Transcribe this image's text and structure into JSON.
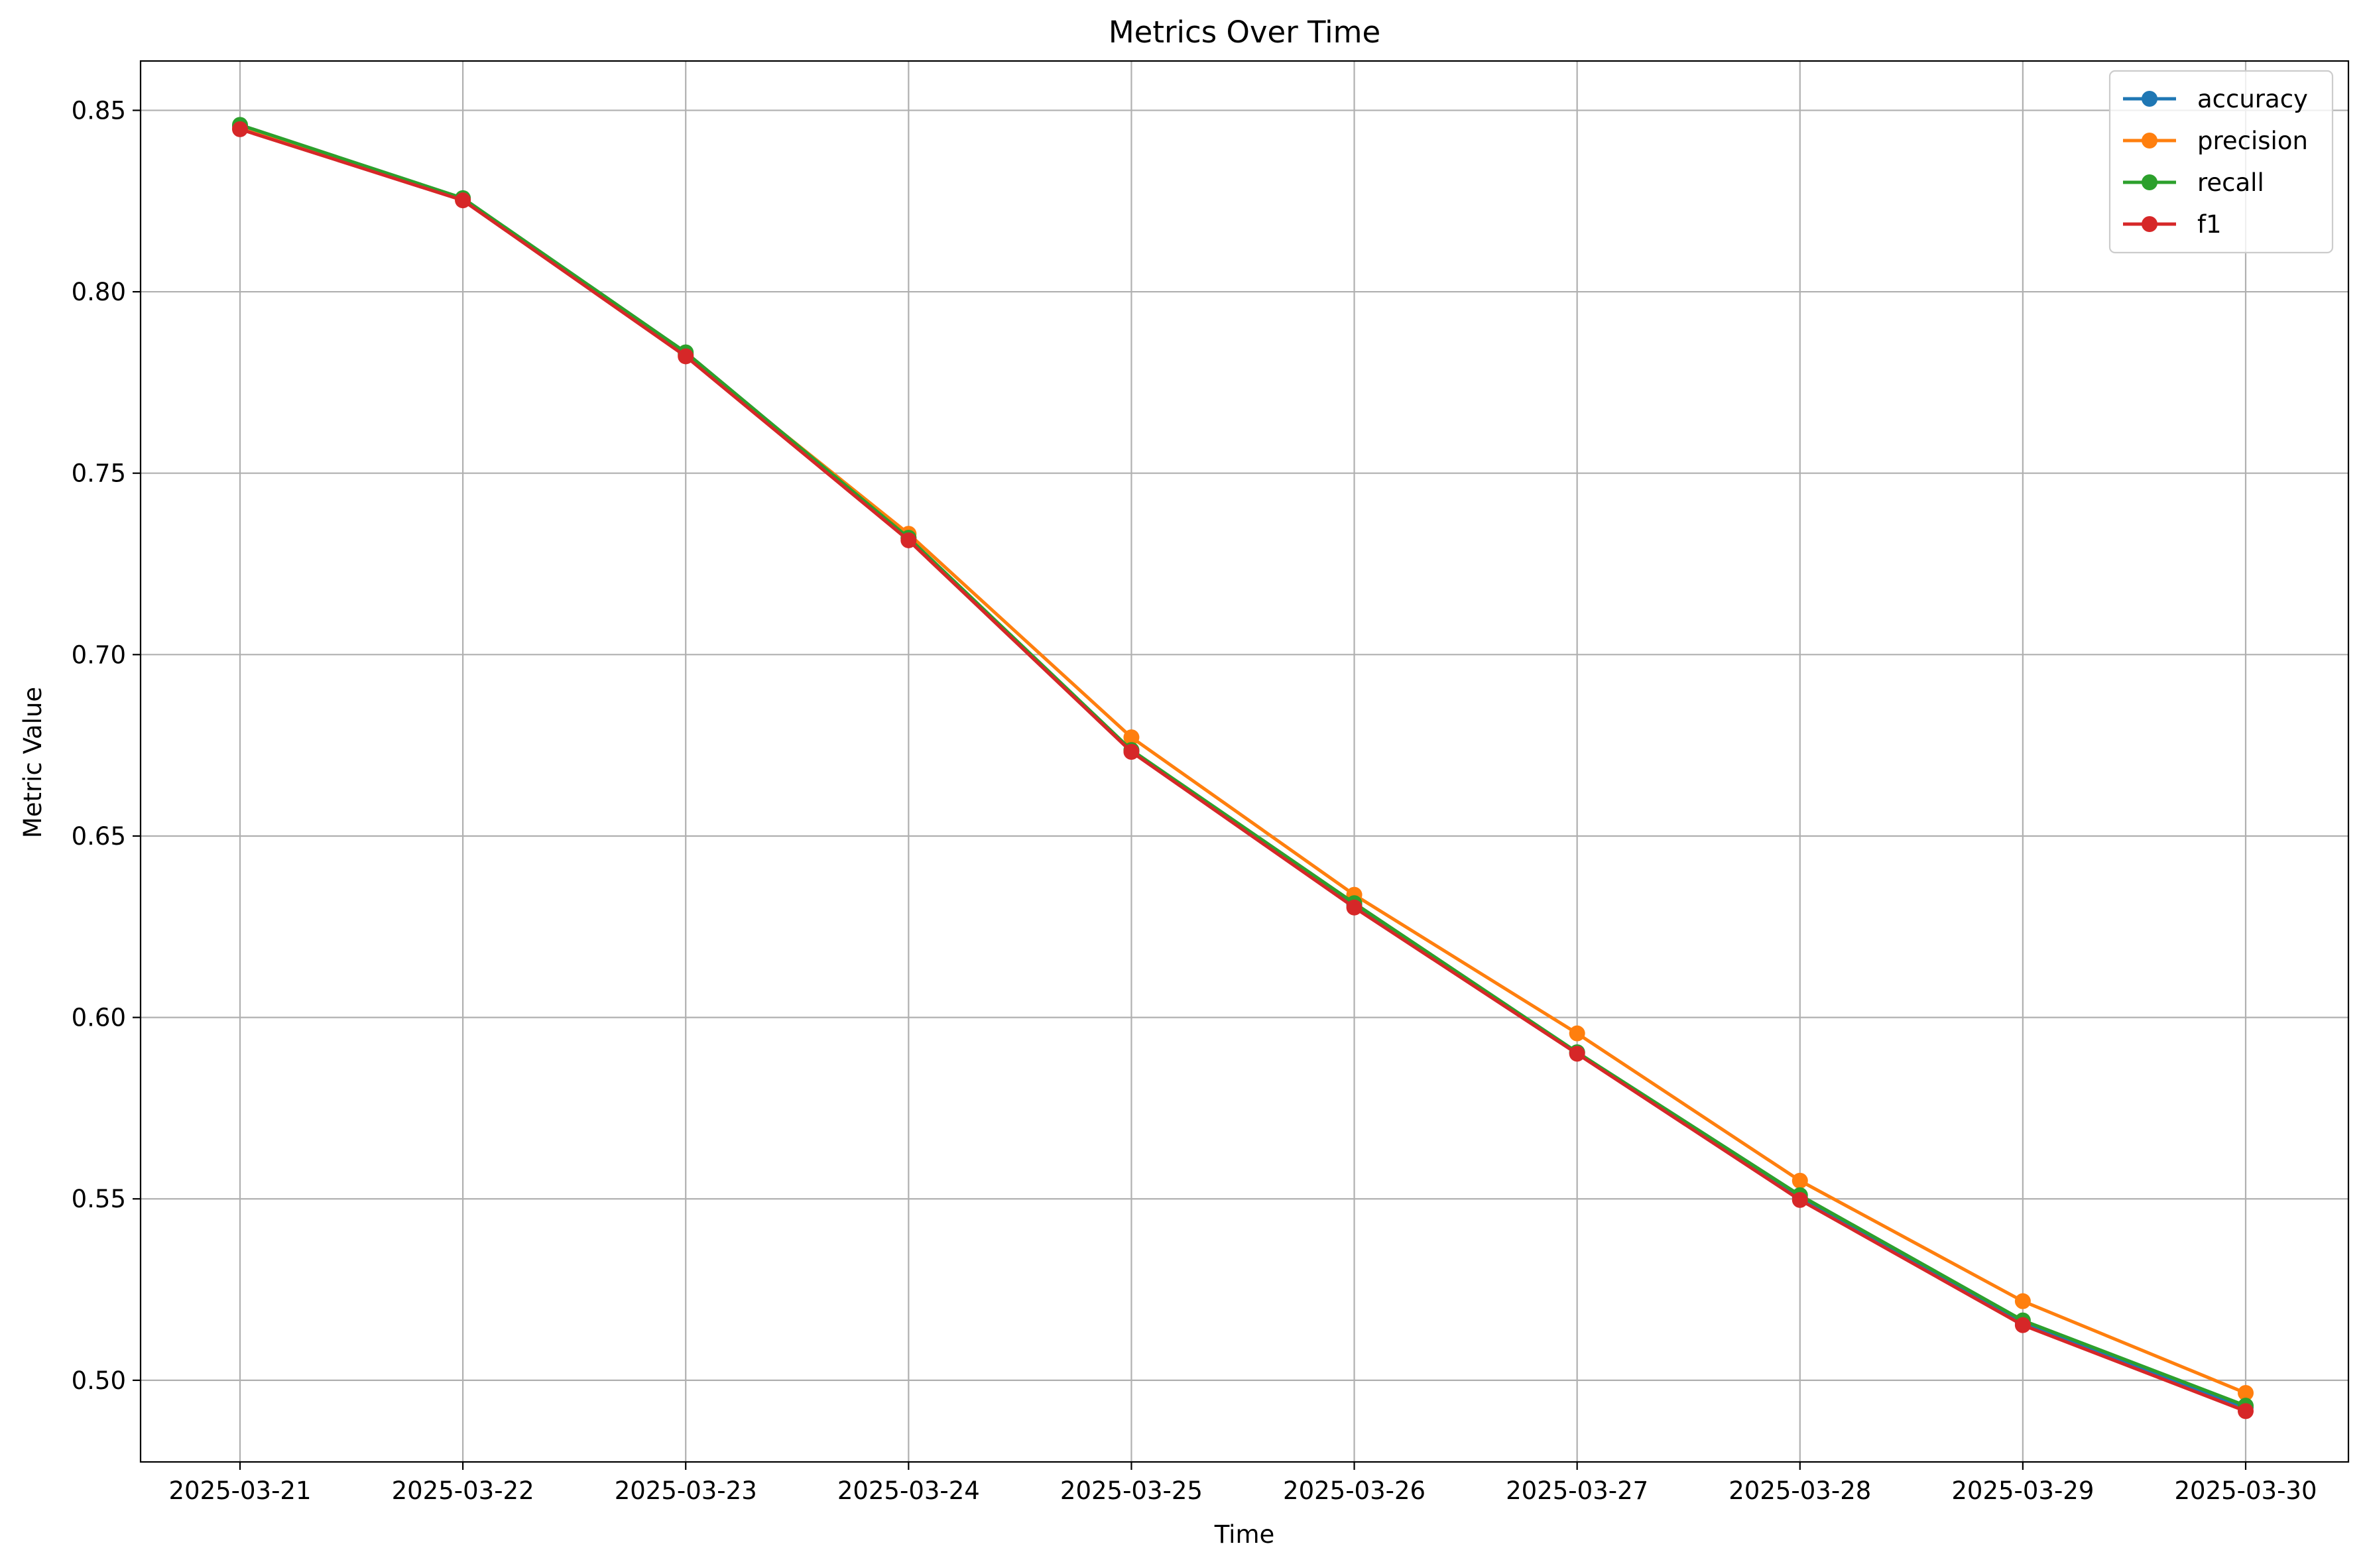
{
  "chart_data": {
    "type": "line",
    "title": "Metrics Over Time",
    "xlabel": "Time",
    "ylabel": "Metric Value",
    "x": [
      "2025-03-21",
      "2025-03-22",
      "2025-03-23",
      "2025-03-24",
      "2025-03-25",
      "2025-03-26",
      "2025-03-27",
      "2025-03-28",
      "2025-03-29",
      "2025-03-30"
    ],
    "ylim": [
      0.4775,
      0.8636
    ],
    "yticks": [
      "0.50",
      "0.55",
      "0.60",
      "0.65",
      "0.70",
      "0.75",
      "0.80",
      "0.85"
    ],
    "ytick_values": [
      0.5,
      0.55,
      0.6,
      0.65,
      0.7,
      0.75,
      0.8,
      0.85
    ],
    "grid": true,
    "legend_position": "top-right",
    "series": [
      {
        "name": "accuracy",
        "color": "#1f77b4",
        "marker": "circle",
        "values": [
          0.8455,
          0.8255,
          0.7828,
          0.732,
          0.6735,
          0.631,
          0.5903,
          0.5502,
          0.5157,
          0.4925
        ]
      },
      {
        "name": "precision",
        "color": "#ff7f0e",
        "marker": "circle",
        "values": [
          0.845,
          0.8253,
          0.7825,
          0.7333,
          0.6772,
          0.6338,
          0.5956,
          0.555,
          0.5218,
          0.4965
        ]
      },
      {
        "name": "recall",
        "color": "#2ca02c",
        "marker": "circle",
        "values": [
          0.846,
          0.8258,
          0.7833,
          0.7322,
          0.6737,
          0.6315,
          0.5904,
          0.551,
          0.5165,
          0.493
        ]
      },
      {
        "name": "f1",
        "color": "#d62728",
        "marker": "circle",
        "values": [
          0.8448,
          0.8252,
          0.7822,
          0.7315,
          0.6732,
          0.6303,
          0.59,
          0.5497,
          0.5152,
          0.4915
        ]
      }
    ]
  }
}
